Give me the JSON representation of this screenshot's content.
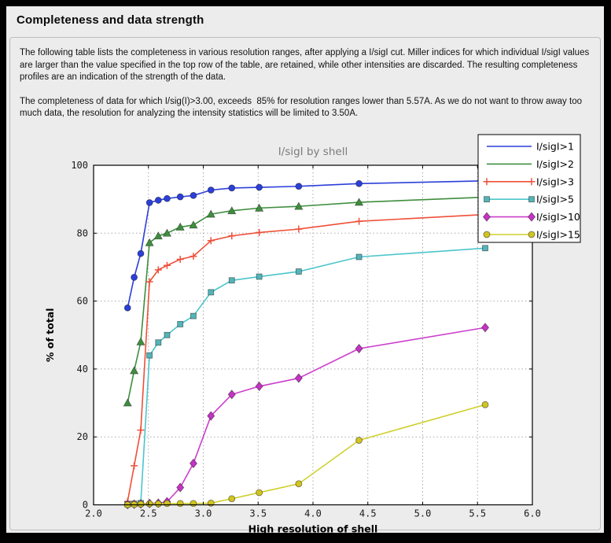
{
  "page": {
    "title": "Completeness and data strength",
    "paragraph_1": "The following table lists the completeness in various resolution ranges, after applying a I/sigI cut. Miller indices for which individual I/sigI values are larger than the value specified in the top row of the table, are retained, while other intensities are discarded. The resulting completeness profiles are an indication of the strength of the data.",
    "paragraph_2": "The completeness of data for which I/sig(I)>3.00, exceeds  85% for resolution ranges lower than 5.57A. As we do not want to throw away too much data, the resolution for analyzing the intensity statistics will be limited to 3.50A."
  },
  "chart_data": {
    "type": "line",
    "title": "I/sigI by shell",
    "xlabel": "High resolution of shell",
    "ylabel": "% of total",
    "xlim": [
      2.0,
      6.0
    ],
    "ylim": [
      0,
      100
    ],
    "xticks": [
      2.0,
      2.5,
      3.0,
      3.5,
      4.0,
      4.5,
      5.0,
      5.5,
      6.0
    ],
    "yticks": [
      0,
      20,
      40,
      60,
      80,
      100
    ],
    "grid": true,
    "grid_color": "#aaaaaa",
    "axes_background": "#ffffff",
    "figure_background": "#ececec",
    "legend_position": "upper right",
    "x": [
      2.31,
      2.37,
      2.43,
      2.51,
      2.59,
      2.67,
      2.79,
      2.91,
      3.07,
      3.26,
      3.51,
      3.87,
      4.42,
      5.57
    ],
    "series": [
      {
        "name": "I/sigI>1",
        "color": "#2b3fd9",
        "marker": "circle",
        "marker_fill": "#2b3fd9",
        "legend_marker": false,
        "values": [
          58,
          67,
          74,
          89,
          89.7,
          90.2,
          90.7,
          91.1,
          92.7,
          93.3,
          93.5,
          93.8,
          94.6,
          95.4
        ]
      },
      {
        "name": "I/sigI>2",
        "color": "#3e8e3e",
        "marker": "triangle",
        "marker_fill": "#3e8e3e",
        "legend_marker": false,
        "values": [
          30,
          39.5,
          48,
          77.2,
          79.2,
          80,
          81.8,
          82.4,
          85.6,
          86.6,
          87.4,
          87.9,
          89.1,
          90.6
        ]
      },
      {
        "name": "I/sigI>3",
        "color": "#ef4f38",
        "marker": "plus",
        "marker_fill": "none",
        "legend_marker": true,
        "values": [
          1,
          11.5,
          22,
          65.7,
          69.2,
          70.5,
          72.3,
          73.2,
          77.8,
          79.2,
          80.2,
          81.2,
          83.5,
          85.5
        ]
      },
      {
        "name": "I/sigI>5",
        "color": "#4cc5cb",
        "marker": "square",
        "marker_fill": "#53b4b8",
        "legend_marker": true,
        "values": [
          0.2,
          0.3,
          0.5,
          44,
          47.8,
          50,
          53.2,
          55.6,
          62.6,
          66.1,
          67.2,
          68.7,
          73,
          75.6
        ]
      },
      {
        "name": "I/sigI>10",
        "color": "#cc3ecc",
        "marker": "diamond",
        "marker_fill": "#c433c4",
        "legend_marker": true,
        "values": [
          0.1,
          0.2,
          0.3,
          0.4,
          0.5,
          0.9,
          5.1,
          12.2,
          26.2,
          32.5,
          34.9,
          37.3,
          46,
          52.2
        ]
      },
      {
        "name": "I/sigI>15",
        "color": "#cfcf2e",
        "marker": "circle",
        "marker_fill": "#d0c422",
        "legend_marker": true,
        "values": [
          0,
          0.1,
          0.2,
          0.3,
          0.3,
          0.4,
          0.4,
          0.4,
          0.5,
          1.8,
          3.6,
          6.2,
          19,
          29.5
        ]
      }
    ]
  }
}
